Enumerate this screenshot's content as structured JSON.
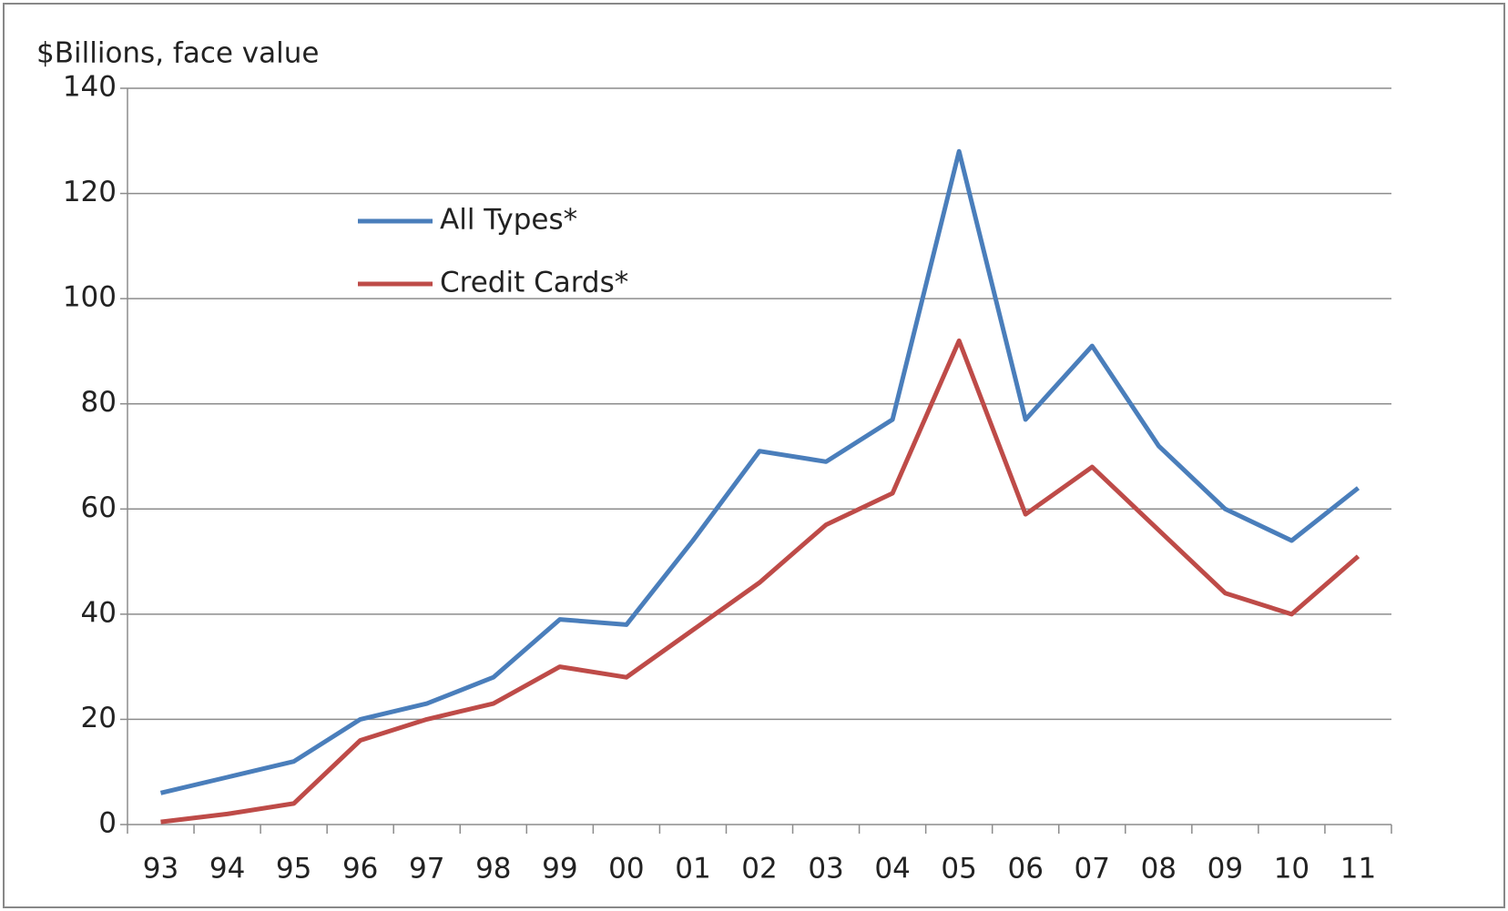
{
  "chart_data": {
    "type": "line",
    "ylabel": "$Billions, face value",
    "categories": [
      "93",
      "94",
      "95",
      "96",
      "97",
      "98",
      "99",
      "00",
      "01",
      "02",
      "03",
      "04",
      "05",
      "06",
      "07",
      "08",
      "09",
      "10",
      "11"
    ],
    "series": [
      {
        "name": "All Types*",
        "color": "#4a7ebb",
        "values": [
          6,
          9,
          12,
          20,
          23,
          28,
          39,
          38,
          54,
          71,
          69,
          77,
          128,
          77,
          91,
          72,
          60,
          54,
          64
        ]
      },
      {
        "name": "Credit Cards*",
        "color": "#be4b48",
        "values": [
          0.5,
          2,
          4,
          16,
          20,
          23,
          30,
          28,
          37,
          46,
          57,
          63,
          92,
          59,
          68,
          56,
          44,
          40,
          51
        ]
      }
    ],
    "ylim": [
      0,
      140
    ],
    "yticks": [
      0,
      20,
      40,
      60,
      80,
      100,
      120,
      140
    ],
    "grid": true,
    "legend": "upper left"
  }
}
